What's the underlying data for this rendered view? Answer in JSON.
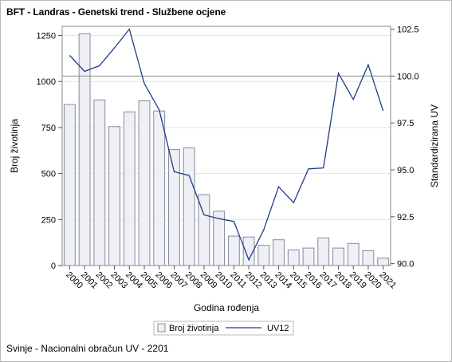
{
  "title": "BFT - Landras - Genetski trend - Službene ocjene",
  "footnote": "Svinje - Nacionalni obračun UV - 2201",
  "chart_data": {
    "type": "bar+line",
    "categories": [
      "2000",
      "2001",
      "2002",
      "2003",
      "2004",
      "2005",
      "2006",
      "2007",
      "2008",
      "2009",
      "2010",
      "2011",
      "2012",
      "2013",
      "2014",
      "2015",
      "2016",
      "2017",
      "2018",
      "2019",
      "2020",
      "2021"
    ],
    "series": [
      {
        "name": "Broj životinja",
        "type": "bar",
        "axis": "left",
        "values": [
          875,
          1260,
          900,
          755,
          835,
          895,
          840,
          630,
          640,
          385,
          295,
          160,
          155,
          110,
          140,
          85,
          95,
          150,
          95,
          120,
          80,
          40
        ]
      },
      {
        "name": "UV12",
        "type": "line",
        "axis": "right",
        "values": [
          101.1,
          100.25,
          100.55,
          101.5,
          102.5,
          99.6,
          98.2,
          94.9,
          94.7,
          92.6,
          92.4,
          92.25,
          90.2,
          91.8,
          94.1,
          93.25,
          95.05,
          95.1,
          100.15,
          98.75,
          100.6,
          98.15
        ]
      }
    ],
    "xlabel": "Godina rođenja",
    "ylabel": "Broj životinja",
    "y2label": "Standardizirana UV",
    "yticks": [
      0,
      250,
      500,
      750,
      1000,
      1250
    ],
    "y2ticks": [
      "90.0",
      "92.5",
      "95.0",
      "97.5",
      "100.0",
      "102.5"
    ],
    "ylim": [
      0,
      1300
    ],
    "y2lim": [
      89.9,
      102.65
    ],
    "reference_line_y2": 100,
    "legend": "bottom-center",
    "colors": {
      "bar_fill": "#eef0f5",
      "bar_stroke": "#868b99",
      "line": "#1f3b8c",
      "reference": "#8a8a8a"
    }
  }
}
